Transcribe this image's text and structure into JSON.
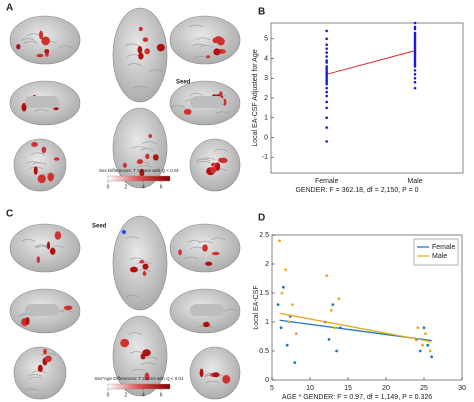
{
  "panels": {
    "a": "A",
    "b": "B",
    "c": "C",
    "d": "D"
  },
  "seed_labels": [
    "Seed",
    "Seed"
  ],
  "colorbar_a": {
    "title": "Sex Differences: T Scores with Q < 0.01",
    "lim": [
      0,
      7
    ],
    "ticks": [
      0,
      2,
      4,
      6
    ]
  },
  "colorbar_c": {
    "title": "Sex*Age Differences: T scores with Q < 0.01",
    "lim": [
      0,
      7
    ],
    "ticks": [
      0,
      2,
      4,
      6
    ]
  },
  "chart_data": [
    {
      "type": "strip",
      "ylabel": "Local EA-CSF Adjusted for Age",
      "xlabel": "GENDER: F = 362.18, df = 2,150, P = 0",
      "categories": [
        "Female",
        "Male"
      ],
      "ylim": [
        -1.8,
        5.8
      ],
      "yticks": [
        -1,
        0,
        1,
        2,
        3,
        4,
        5
      ],
      "point_color": "#1a1ad8",
      "points": [
        [
          5.4,
          5.0,
          4.7,
          4.5,
          4.3,
          4.1,
          3.9,
          3.8,
          3.6,
          3.5,
          3.4,
          3.3,
          3.2,
          3.1,
          3.0,
          2.9,
          2.8,
          2.7,
          2.5,
          2.3,
          2.1,
          1.8,
          1.5,
          1.0,
          0.5,
          -0.2
        ],
        [
          5.8,
          5.6,
          5.5,
          5.3,
          5.2,
          5.1,
          5.0,
          4.9,
          4.8,
          4.7,
          4.6,
          4.5,
          4.4,
          4.3,
          4.2,
          4.1,
          4.0,
          3.9,
          3.8,
          3.7,
          3.6,
          3.4,
          3.2,
          3.0,
          2.8,
          2.5
        ]
      ],
      "mean_color": "#e02020",
      "means": [
        3.2,
        4.4
      ]
    },
    {
      "type": "scatter",
      "ylabel": "Local EA-CSF",
      "xlabel": "AGE * GENDER: F = 0.97, df = 1,149, P = 0.326",
      "xlim": [
        5,
        30
      ],
      "xticks": [
        5,
        10,
        15,
        20,
        25,
        30
      ],
      "ylim": [
        0,
        2.5
      ],
      "yticks": [
        0,
        0.5,
        1,
        1.5,
        2,
        2.5
      ],
      "legend": "top-right",
      "series": [
        {
          "name": "Female",
          "color": "#1f78c0",
          "x": [
            5.8,
            6.2,
            6.5,
            7,
            7.4,
            8,
            12,
            12.5,
            13,
            13.5,
            14,
            24,
            24.5,
            25,
            25.5,
            26
          ],
          "values": [
            1.3,
            0.9,
            1.6,
            0.6,
            1.1,
            0.3,
            1.0,
            0.7,
            1.3,
            0.5,
            0.9,
            0.7,
            0.5,
            0.9,
            0.6,
            0.4
          ],
          "fit": {
            "x": [
              6,
              26
            ],
            "values": [
              1.03,
              0.68
            ]
          }
        },
        {
          "name": "Male",
          "color": "#e8a820",
          "x": [
            6,
            6.3,
            6.8,
            7.2,
            7.7,
            8.2,
            12.2,
            12.8,
            13.2,
            13.8,
            24.2,
            24.8,
            25.2,
            25.8
          ],
          "values": [
            2.4,
            1.5,
            1.9,
            1.0,
            1.3,
            0.8,
            1.8,
            1.2,
            0.9,
            1.4,
            0.9,
            0.6,
            0.8,
            0.5
          ],
          "fit": {
            "x": [
              6,
              26
            ],
            "values": [
              1.15,
              0.66
            ]
          }
        }
      ]
    }
  ]
}
